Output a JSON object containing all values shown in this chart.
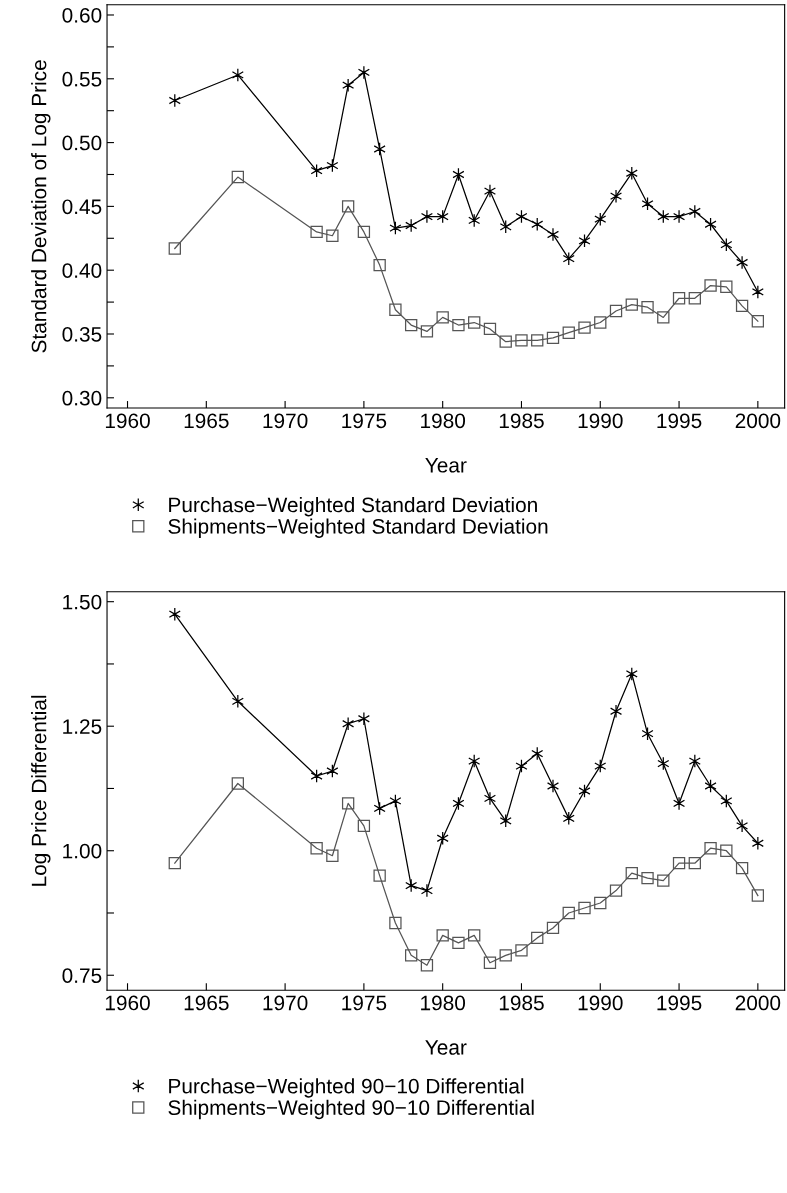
{
  "chart_data": [
    {
      "type": "line",
      "xlabel": "Year",
      "ylabel": "Standard Deviation of Log Price",
      "x": [
        1963,
        1967,
        1972,
        1973,
        1974,
        1975,
        1976,
        1977,
        1978,
        1979,
        1980,
        1981,
        1982,
        1983,
        1984,
        1985,
        1986,
        1987,
        1988,
        1989,
        1990,
        1991,
        1992,
        1993,
        1994,
        1995,
        1996,
        1997,
        1998,
        1999,
        2000
      ],
      "series": [
        {
          "name": "Purchase−Weighted Standard Deviation",
          "color": "#000000",
          "marker": "cross",
          "values": [
            0.533,
            0.553,
            0.478,
            0.482,
            0.545,
            0.555,
            0.495,
            0.433,
            0.435,
            0.442,
            0.442,
            0.475,
            0.439,
            0.462,
            0.434,
            0.442,
            0.436,
            0.428,
            0.409,
            0.423,
            0.44,
            0.458,
            0.476,
            0.452,
            0.442,
            0.442,
            0.446,
            0.436,
            0.42,
            0.406,
            0.383
          ]
        },
        {
          "name": "Shipments−Weighted Standard Deviation",
          "color": "#555555",
          "marker": "square",
          "values": [
            0.417,
            0.473,
            0.43,
            0.427,
            0.45,
            0.43,
            0.404,
            0.369,
            0.357,
            0.352,
            0.363,
            0.357,
            0.359,
            0.354,
            0.344,
            0.345,
            0.345,
            0.347,
            0.351,
            0.355,
            0.359,
            0.368,
            0.373,
            0.371,
            0.363,
            0.378,
            0.378,
            0.388,
            0.387,
            0.372,
            0.36
          ]
        }
      ],
      "xlim": [
        1958.7,
        2001.7
      ],
      "xticks": [
        1960,
        1965,
        1970,
        1975,
        1980,
        1985,
        1990,
        1995,
        2000
      ],
      "ylim": [
        0.292,
        0.608
      ],
      "yticks": [
        {
          "value": 0.3,
          "label": "0.30"
        },
        {
          "value": 0.325,
          "label": null
        },
        {
          "value": 0.35,
          "label": "0.35"
        },
        {
          "value": 0.375,
          "label": null
        },
        {
          "value": 0.4,
          "label": "0.40"
        },
        {
          "value": 0.425,
          "label": null
        },
        {
          "value": 0.45,
          "label": "0.45"
        },
        {
          "value": 0.475,
          "label": null
        },
        {
          "value": 0.5,
          "label": "0.50"
        },
        {
          "value": 0.525,
          "label": null
        },
        {
          "value": 0.55,
          "label": "0.55"
        },
        {
          "value": 0.575,
          "label": null
        },
        {
          "value": 0.6,
          "label": "0.60"
        }
      ],
      "grid": false,
      "legend": "bottom",
      "line_style": "solid"
    },
    {
      "type": "line",
      "xlabel": "Year",
      "ylabel": "Log Price Differential",
      "x": [
        1963,
        1967,
        1972,
        1973,
        1974,
        1975,
        1976,
        1977,
        1978,
        1979,
        1980,
        1981,
        1982,
        1983,
        1984,
        1985,
        1986,
        1987,
        1988,
        1989,
        1990,
        1991,
        1992,
        1993,
        1994,
        1995,
        1996,
        1997,
        1998,
        1999,
        2000
      ],
      "series": [
        {
          "name": "Purchase−Weighted 90−10 Differential",
          "color": "#000000",
          "marker": "cross",
          "values": [
            1.475,
            1.3,
            1.15,
            1.16,
            1.255,
            1.265,
            1.085,
            1.1,
            0.93,
            0.92,
            1.025,
            1.095,
            1.18,
            1.105,
            1.06,
            1.17,
            1.195,
            1.13,
            1.065,
            1.12,
            1.17,
            1.28,
            1.355,
            1.235,
            1.175,
            1.095,
            1.18,
            1.13,
            1.1,
            1.05,
            1.015
          ]
        },
        {
          "name": "Shipments−Weighted 90−10 Differential",
          "color": "#555555",
          "marker": "square",
          "values": [
            0.975,
            1.135,
            1.005,
            0.99,
            1.095,
            1.05,
            0.95,
            0.855,
            0.79,
            0.77,
            0.83,
            0.815,
            0.83,
            0.775,
            0.79,
            0.8,
            0.825,
            0.845,
            0.875,
            0.885,
            0.895,
            0.92,
            0.955,
            0.945,
            0.94,
            0.975,
            0.975,
            1.005,
            1.0,
            0.965,
            0.91
          ]
        }
      ],
      "xlim": [
        1958.7,
        2001.7
      ],
      "xticks": [
        1960,
        1965,
        1970,
        1975,
        1980,
        1985,
        1990,
        1995,
        2000
      ],
      "ylim": [
        0.72,
        1.52
      ],
      "yticks": [
        {
          "value": 0.75,
          "label": "0.75"
        },
        {
          "value": 0.875,
          "label": null
        },
        {
          "value": 1.0,
          "label": "1.00"
        },
        {
          "value": 1.125,
          "label": null
        },
        {
          "value": 1.25,
          "label": "1.25"
        },
        {
          "value": 1.375,
          "label": null
        },
        {
          "value": 1.5,
          "label": "1.50"
        }
      ],
      "grid": false,
      "legend": "bottom",
      "line_style": "solid"
    }
  ]
}
